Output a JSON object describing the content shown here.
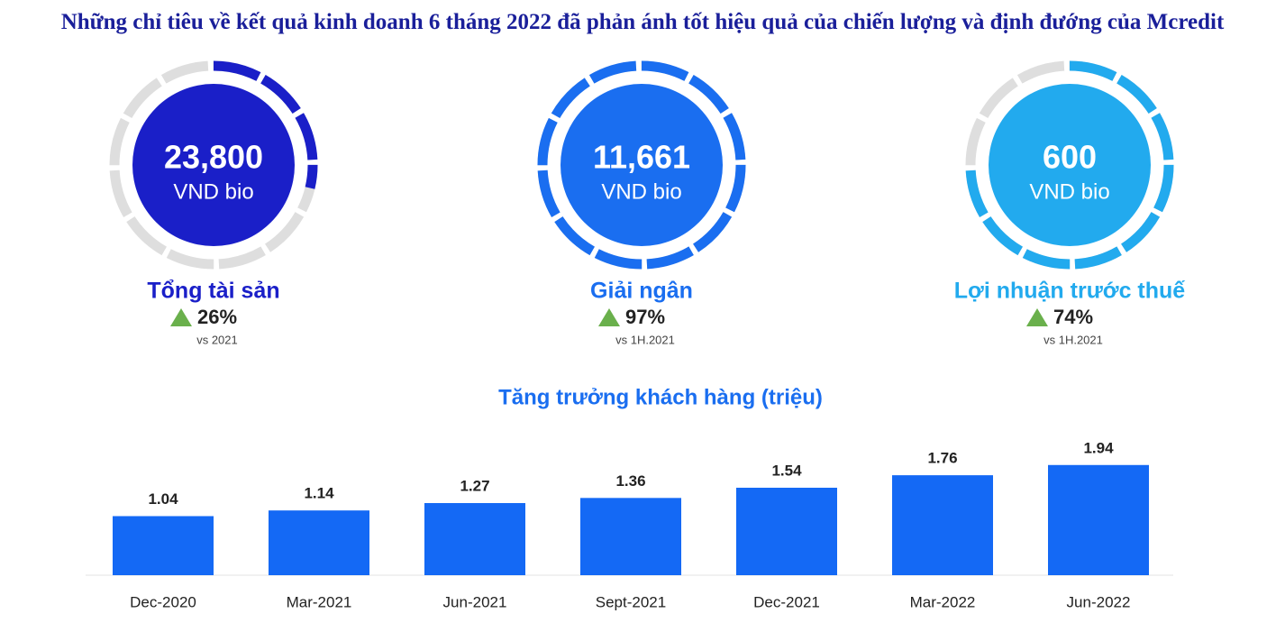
{
  "header": {
    "title": "Những chỉ tiêu về kết quả kinh doanh 6 tháng 2022 đã phản ánh tốt hiệu quả của chiến lượng và định đướng của Mcredit"
  },
  "kpis": [
    {
      "value": "23,800",
      "unit": "VND bio",
      "label": "Tổng tài sản",
      "change": "26%",
      "compare": "vs 2021",
      "color": "#1a1fc8"
    },
    {
      "value": "11,661",
      "unit": "VND bio",
      "label": "Giải ngân",
      "change": "97%",
      "compare": "vs 1H.2021",
      "color": "#1a6ef0"
    },
    {
      "value": "600",
      "unit": "VND bio",
      "label": "Lợi nhuận trước thuế",
      "change": "74%",
      "compare": "vs 1H.2021",
      "color": "#22aaee"
    }
  ],
  "chart_data": {
    "type": "bar",
    "title": "Tăng trưởng khách hàng (triệu)",
    "categories": [
      "Dec-2020",
      "Mar-2021",
      "Jun-2021",
      "Sept-2021",
      "Dec-2021",
      "Mar-2022",
      "Jun-2022"
    ],
    "values": [
      1.04,
      1.14,
      1.27,
      1.36,
      1.54,
      1.76,
      1.94
    ],
    "color": "#1469f5"
  }
}
